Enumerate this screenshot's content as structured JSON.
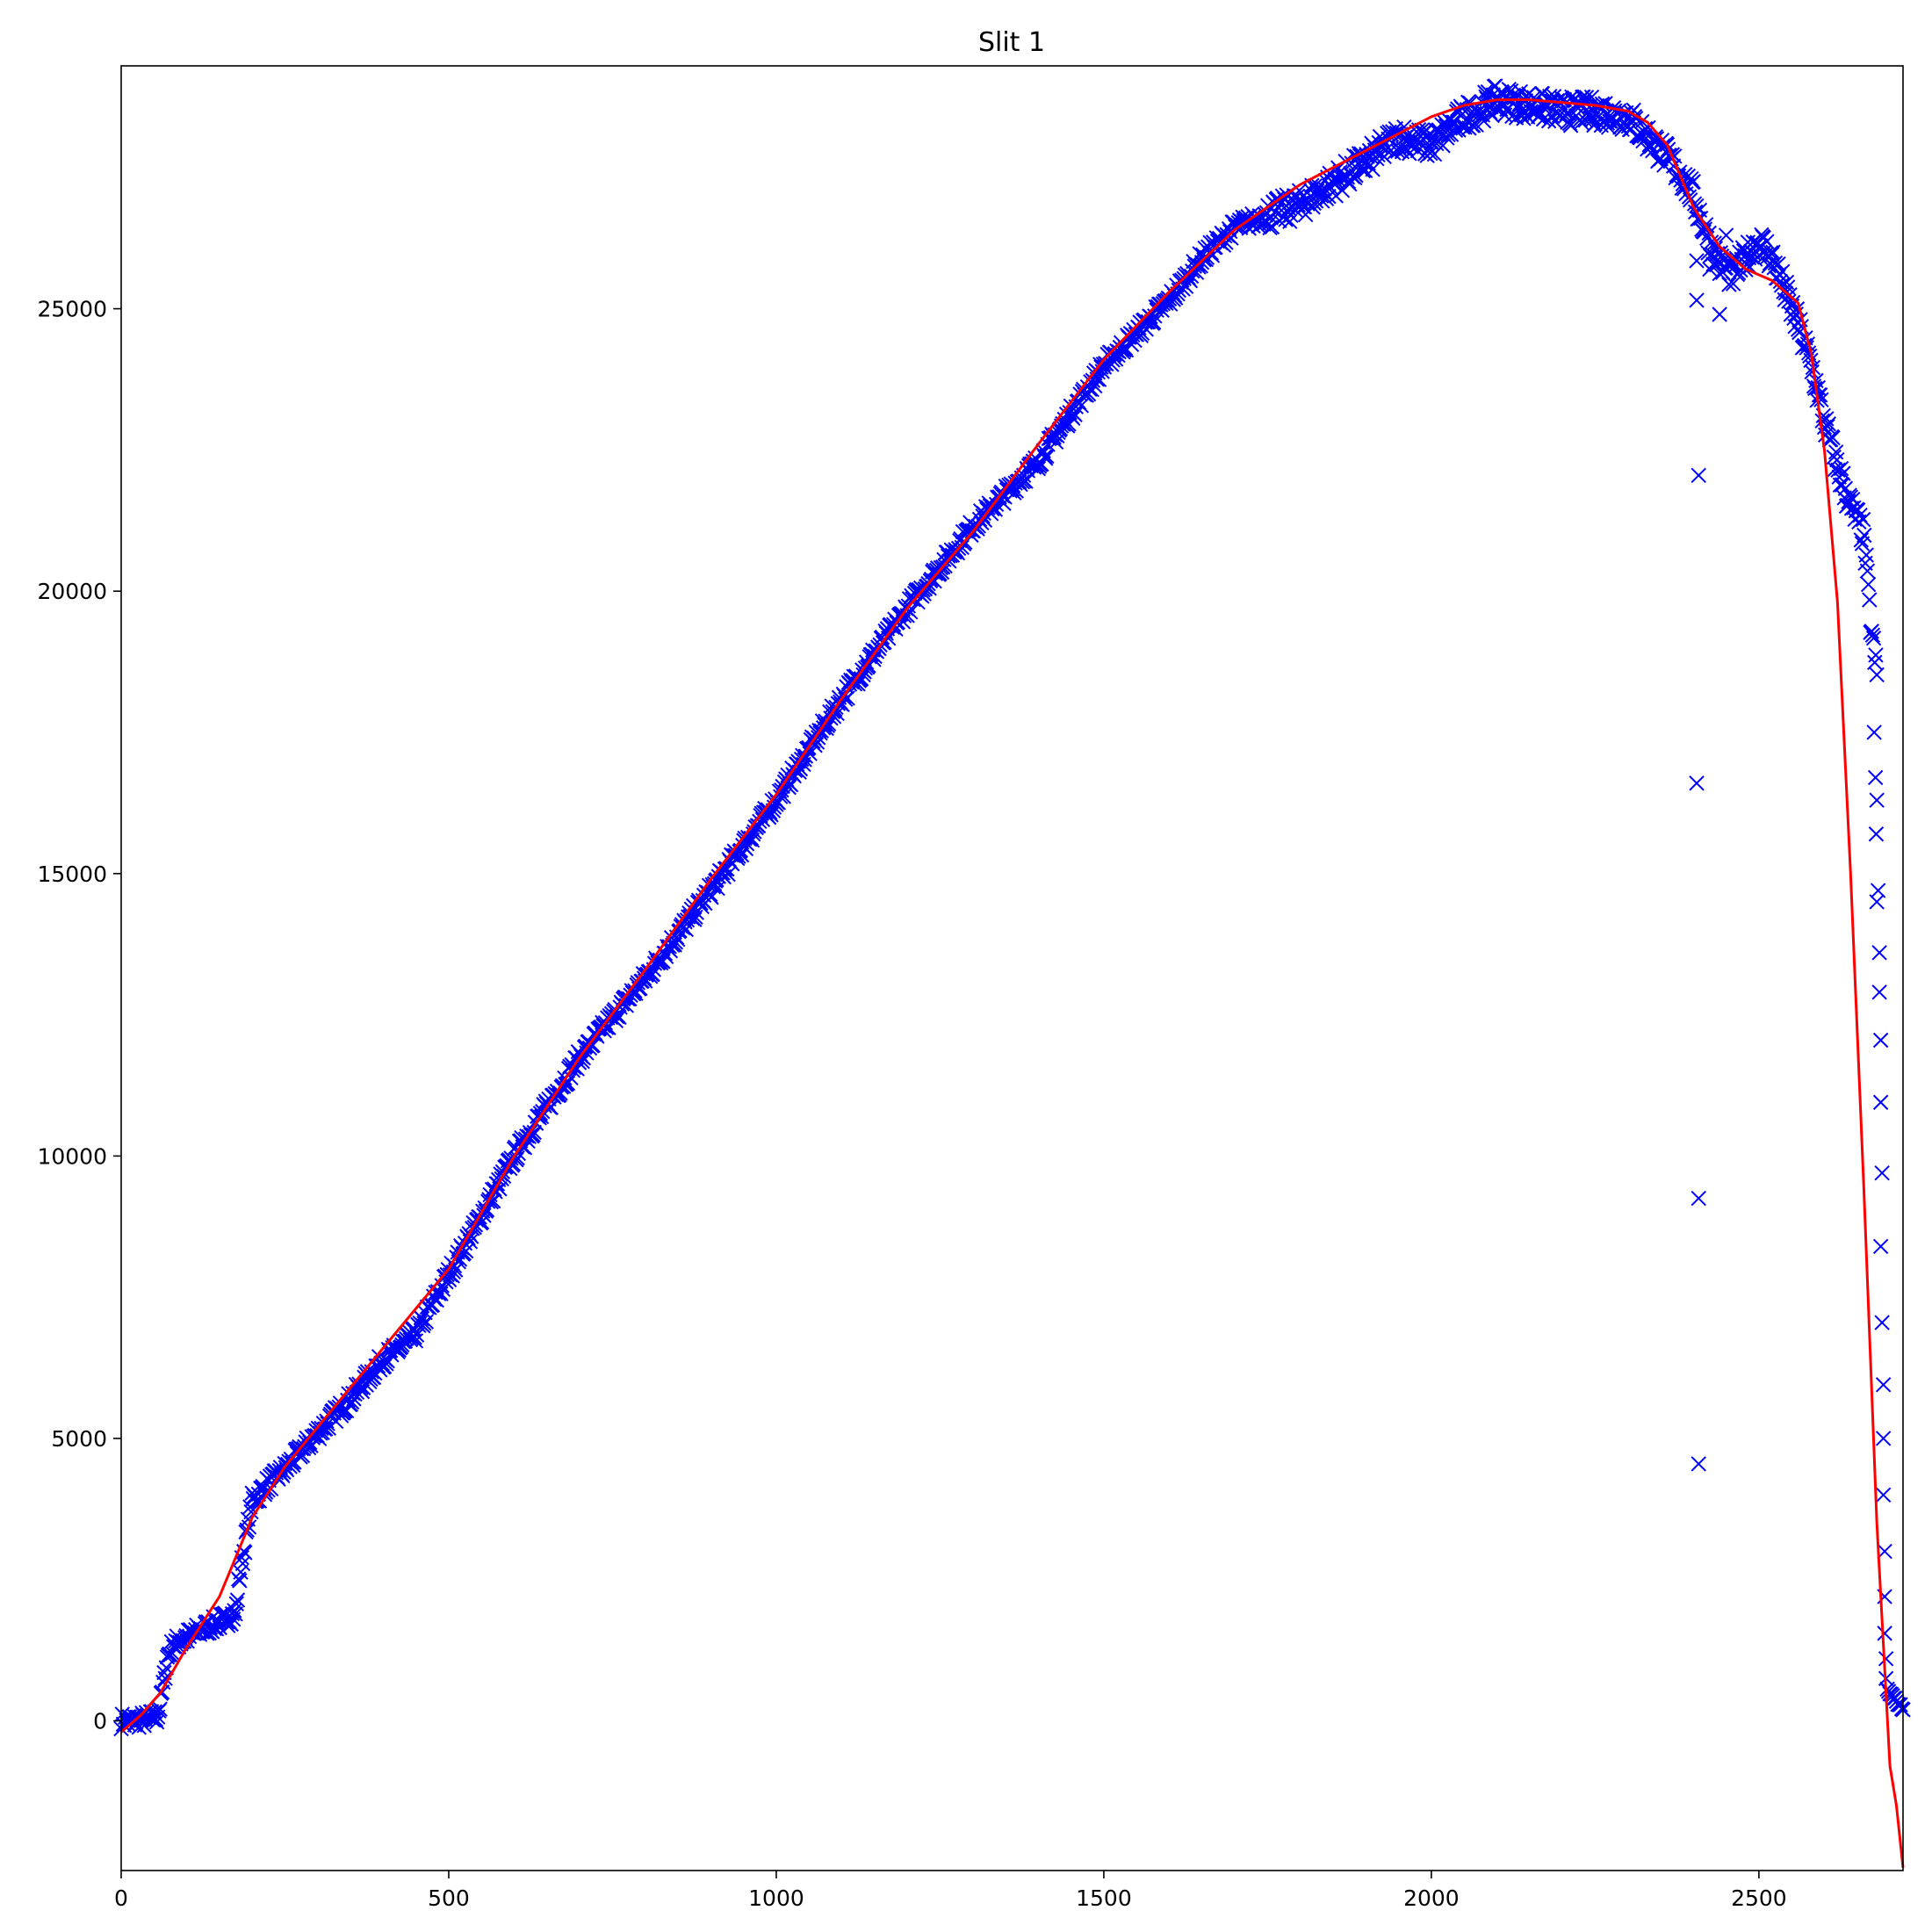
{
  "chart_data": {
    "type": "scatter",
    "title": "Slit 1",
    "xlabel": "",
    "ylabel": "",
    "xlim": [
      0,
      2720
    ],
    "ylim": [
      -2650,
      29300
    ],
    "grid": false,
    "xticks": [
      0,
      500,
      1000,
      1500,
      2000,
      2500
    ],
    "yticks": [
      0,
      5000,
      10000,
      15000,
      20000,
      25000
    ],
    "series": [
      {
        "kind": "scatter",
        "marker": "x",
        "color": "#0000ff",
        "trend": {
          "x": [
            0,
            20,
            40,
            55,
            60,
            65,
            70,
            75,
            80,
            100,
            120,
            140,
            160,
            175,
            180,
            190,
            200,
            210,
            220,
            250,
            300,
            350,
            400,
            420,
            450,
            500,
            600,
            700,
            800,
            900,
            1000,
            1100,
            1200,
            1300,
            1400,
            1500,
            1600,
            1650,
            1700,
            1800,
            1900,
            1950,
            2000,
            2050,
            2100,
            2150,
            2200,
            2250,
            2300,
            2350,
            2380,
            2400,
            2420,
            2440,
            2460,
            2480,
            2500,
            2520,
            2540,
            2560,
            2580,
            2600,
            2620,
            2640,
            2660,
            2670,
            2680
          ],
          "y": [
            0,
            0,
            30,
            80,
            300,
            700,
            1100,
            1250,
            1350,
            1480,
            1600,
            1700,
            1800,
            1900,
            2500,
            3200,
            3900,
            4000,
            4150,
            4450,
            5100,
            5700,
            6400,
            6550,
            6850,
            7900,
            10000,
            11750,
            13150,
            14700,
            16300,
            18100,
            19700,
            21150,
            22300,
            24000,
            25150,
            25900,
            26450,
            26850,
            27600,
            28050,
            27900,
            28400,
            28700,
            28600,
            28500,
            28500,
            28400,
            27800,
            27400,
            27000,
            26300,
            25800,
            25600,
            25900,
            26200,
            25900,
            25300,
            24700,
            24000,
            23000,
            22200,
            21500,
            21000,
            19500,
            18500
          ]
        },
        "outliers": [
          [
            2405,
            25850
          ],
          [
            2405,
            25150
          ],
          [
            2408,
            22050
          ],
          [
            2405,
            16600
          ],
          [
            2408,
            9250
          ],
          [
            2408,
            4550
          ],
          [
            2425,
            25700
          ],
          [
            2440,
            24900
          ],
          [
            2450,
            26300
          ],
          [
            2676,
            17500
          ],
          [
            2678,
            16700
          ],
          [
            2680,
            16300
          ],
          [
            2679,
            15700
          ],
          [
            2682,
            14700
          ],
          [
            2680,
            14500
          ],
          [
            2684,
            13600
          ],
          [
            2684,
            12900
          ],
          [
            2686,
            12050
          ],
          [
            2686,
            10950
          ],
          [
            2688,
            9700
          ],
          [
            2686,
            8400
          ],
          [
            2688,
            7050
          ],
          [
            2690,
            5950
          ],
          [
            2690,
            5000
          ],
          [
            2690,
            4000
          ],
          [
            2692,
            3000
          ],
          [
            2692,
            2200
          ],
          [
            2692,
            1550
          ],
          [
            2694,
            1100
          ],
          [
            2694,
            750
          ]
        ],
        "tail": {
          "x": [
            2696,
            2720
          ],
          "y": [
            550,
            200
          ]
        }
      },
      {
        "kind": "line",
        "color": "#ff0000",
        "x": [
          0,
          30,
          60,
          100,
          150,
          200,
          250,
          300,
          400,
          500,
          600,
          700,
          800,
          900,
          1000,
          1100,
          1200,
          1300,
          1400,
          1500,
          1600,
          1700,
          1800,
          1900,
          2000,
          2050,
          2100,
          2150,
          2200,
          2250,
          2300,
          2330,
          2360,
          2400,
          2440,
          2480,
          2520,
          2560,
          2580,
          2600,
          2620,
          2640,
          2660,
          2680,
          2700,
          2710,
          2720
        ],
        "y": [
          -200,
          100,
          500,
          1300,
          2200,
          3600,
          4500,
          5200,
          6600,
          8000,
          10000,
          11750,
          13300,
          14900,
          16400,
          18100,
          19700,
          21050,
          22600,
          24100,
          25300,
          26400,
          27200,
          27800,
          28400,
          28600,
          28700,
          28700,
          28650,
          28600,
          28500,
          28300,
          27900,
          26800,
          26100,
          25700,
          25500,
          25100,
          24200,
          22500,
          19800,
          15000,
          9500,
          3500,
          -800,
          -1500,
          -2600
        ]
      }
    ]
  }
}
